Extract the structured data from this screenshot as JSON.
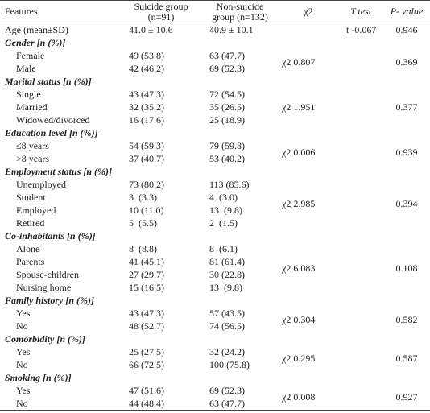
{
  "header": [
    "Features",
    "Suicide group (n=91)",
    "Non-suicide group (n=132)",
    "χ2",
    "T test",
    "P- value"
  ],
  "age": {
    "label": "Age (mean±SD)",
    "suicide": "41.0 ± 10.6",
    "non_suicide": "40.9 ± 10.1",
    "t_test": "t -0.067",
    "p_value": "0.946"
  },
  "groups": [
    {
      "title": "Gender [n (%)]",
      "chi2": "χ2 0.807",
      "p_value": "0.369",
      "rows": [
        {
          "label": "Female",
          "suicide": "49 (53.8)",
          "non_suicide": "63 (47.7)"
        },
        {
          "label": "Male",
          "suicide": "42 (46.2)",
          "non_suicide": "69 (52.3)"
        }
      ]
    },
    {
      "title": "Marital status [n (%)]",
      "chi2": "χ2 1.951",
      "p_value": "0.377",
      "rows": [
        {
          "label": "Single",
          "suicide": "43 (47.3)",
          "non_suicide": "72 (54.5)"
        },
        {
          "label": "Married",
          "suicide": "32 (35.2)",
          "non_suicide": "35 (26.5)"
        },
        {
          "label": "Widowed/divorced",
          "suicide": "16 (17.6)",
          "non_suicide": "25 (18.9)"
        }
      ]
    },
    {
      "title": "Education level [n (%)]",
      "chi2": "χ2 0.006",
      "p_value": "0.939",
      "rows": [
        {
          "label": "≤8 years",
          "suicide": "54 (59.3)",
          "non_suicide": "79 (59.8)"
        },
        {
          "label": ">8 years",
          "suicide": "37 (40.7)",
          "non_suicide": "53 (40.2)"
        }
      ]
    },
    {
      "title": "Employment status [n (%)]",
      "chi2": "χ2 2.985",
      "p_value": "0.394",
      "rows": [
        {
          "label": "Unemployed",
          "suicide": "73 (80.2)",
          "non_suicide": "113 (85.6)"
        },
        {
          "label": "Student",
          "suicide": "3  (3.3)",
          "non_suicide": "4  (3.0)"
        },
        {
          "label": "Employed",
          "suicide": "10 (11.0)",
          "non_suicide": "13  (9.8)"
        },
        {
          "label": "Retired",
          "suicide": "5  (5.5)",
          "non_suicide": "2  (1.5)"
        }
      ]
    },
    {
      "title": "Co-inhabitants [n (%)]",
      "chi2": "χ2 6.083",
      "p_value": "0.108",
      "rows": [
        {
          "label": "Alone",
          "suicide": "8  (8.8)",
          "non_suicide": "8  (6.1)"
        },
        {
          "label": "Parents",
          "suicide": "41 (45.1)",
          "non_suicide": "81 (61.4)"
        },
        {
          "label": "Spouse-children",
          "suicide": "27 (29.7)",
          "non_suicide": "30 (22.8)"
        },
        {
          "label": "Nursing home",
          "suicide": "15 (16.5)",
          "non_suicide": "13  (9.8)"
        }
      ]
    },
    {
      "title": "Family history [n (%)]",
      "chi2": "χ2 0.304",
      "p_value": "0.582",
      "rows": [
        {
          "label": "Yes",
          "suicide": "43 (47.3)",
          "non_suicide": "57 (43.5)"
        },
        {
          "label": "No",
          "suicide": "48 (52.7)",
          "non_suicide": "74 (56.5)"
        }
      ]
    },
    {
      "title": "Comorbidity [n (%)]",
      "chi2": "χ2 0.295",
      "p_value": "0.587",
      "rows": [
        {
          "label": "Yes",
          "suicide": "25 (27.5)",
          "non_suicide": "32 (24.2)"
        },
        {
          "label": "No",
          "suicide": "66 (72.5)",
          "non_suicide": "100 (75.8)"
        }
      ]
    },
    {
      "title": "Smoking [n (%)]",
      "chi2": "χ2 0.008",
      "p_value": "0.927",
      "rows": [
        {
          "label": "Yes",
          "suicide": "47 (51.6)",
          "non_suicide": "69 (52.3)"
        },
        {
          "label": "No",
          "suicide": "44 (48.4)",
          "non_suicide": "63 (47.7)"
        }
      ]
    }
  ]
}
